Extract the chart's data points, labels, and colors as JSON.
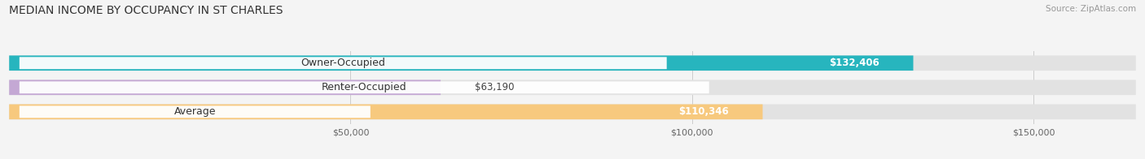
{
  "title": "MEDIAN INCOME BY OCCUPANCY IN ST CHARLES",
  "source": "Source: ZipAtlas.com",
  "categories": [
    "Owner-Occupied",
    "Renter-Occupied",
    "Average"
  ],
  "values": [
    132406,
    63190,
    110346
  ],
  "bar_colors": [
    "#27b5be",
    "#c4a8d4",
    "#f7c97e"
  ],
  "value_labels": [
    "$132,406",
    "$63,190",
    "$110,346"
  ],
  "value_inside": [
    true,
    false,
    true
  ],
  "xmax": 165000,
  "xticks": [
    50000,
    100000,
    150000
  ],
  "xtick_labels": [
    "$50,000",
    "$100,000",
    "$150,000"
  ],
  "background_color": "#f4f4f4",
  "bar_bg_color": "#e2e2e2",
  "title_fontsize": 10,
  "label_fontsize": 9,
  "value_fontsize": 8.5
}
